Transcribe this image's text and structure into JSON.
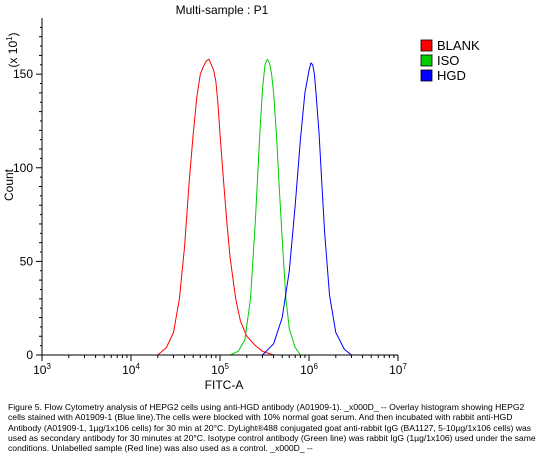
{
  "chart_data": {
    "type": "line",
    "title": "Multi-sample : P1",
    "xlabel": "FITC-A",
    "ylabel": "Count",
    "y_multiplier": "(x 10",
    "y_multiplier_exp": "1",
    "y_multiplier_close": ")",
    "x_scale": "log",
    "xlim": [
      1000,
      10000000
    ],
    "ylim": [
      0,
      180
    ],
    "x_ticks": [
      {
        "base": "10",
        "exp": "3",
        "value": 1000
      },
      {
        "base": "10",
        "exp": "4",
        "value": 10000
      },
      {
        "base": "10",
        "exp": "5",
        "value": 100000
      },
      {
        "base": "10",
        "exp": "6",
        "value": 1000000
      },
      {
        "base": "10",
        "exp": "7",
        "value": 10000000
      }
    ],
    "y_ticks": [
      0,
      50,
      100,
      150
    ],
    "y_tick_labels": [
      "0",
      "50",
      "100",
      "150"
    ],
    "legend_position": "right",
    "series": [
      {
        "name": "BLANK",
        "color": "#ff0000",
        "x": [
          20000,
          25000,
          30000,
          35000,
          40000,
          45000,
          50000,
          55000,
          60000,
          65000,
          70000,
          75000,
          80000,
          85000,
          90000,
          95000,
          100000,
          110000,
          120000,
          130000,
          150000,
          170000,
          200000,
          250000,
          300000,
          400000
        ],
        "y": [
          0,
          4,
          12,
          30,
          58,
          92,
          118,
          138,
          150,
          154,
          157,
          158,
          155,
          152,
          146,
          134,
          118,
          92,
          70,
          52,
          30,
          18,
          10,
          5,
          2,
          0
        ]
      },
      {
        "name": "ISO",
        "color": "#00cc00",
        "x": [
          130000,
          160000,
          190000,
          220000,
          250000,
          280000,
          300000,
          320000,
          340000,
          360000,
          380000,
          400000,
          430000,
          460000,
          500000,
          550000,
          600000,
          700000,
          800000
        ],
        "y": [
          0,
          2,
          8,
          30,
          72,
          118,
          142,
          155,
          158,
          156,
          150,
          140,
          118,
          92,
          62,
          30,
          14,
          4,
          0
        ]
      },
      {
        "name": "HGD",
        "color": "#0000ff",
        "x": [
          300000,
          400000,
          500000,
          600000,
          700000,
          800000,
          900000,
          1000000,
          1050000,
          1100000,
          1150000,
          1200000,
          1300000,
          1400000,
          1500000,
          1700000,
          2000000,
          2500000,
          3000000
        ],
        "y": [
          0,
          6,
          20,
          45,
          80,
          115,
          140,
          152,
          156,
          155,
          150,
          140,
          118,
          90,
          65,
          32,
          12,
          3,
          0
        ]
      }
    ]
  },
  "caption": "Figure 5. Flow Cytometry analysis of HEPG2 cells using anti-HGD antibody (A01909-1). _x000D_ -- Overlay histogram showing HEPG2 cells stained with A01909-1 (Blue line).The cells were blocked with 10% normal goat serum. And then incubated with rabbit anti-HGD Antibody (A01909-1, 1µg/1x106 cells) for 30 min at 20°C. DyLight®488 conjugated goat anti-rabbit IgG (BA1127, 5-10µg/1x106 cells) was used as secondary antibody for 30 minutes at 20°C. Isotype control antibody (Green line) was rabbit IgG (1µg/1x106) used under the same conditions. Unlabelled sample (Red line) was also used as a control. _x000D_ --"
}
